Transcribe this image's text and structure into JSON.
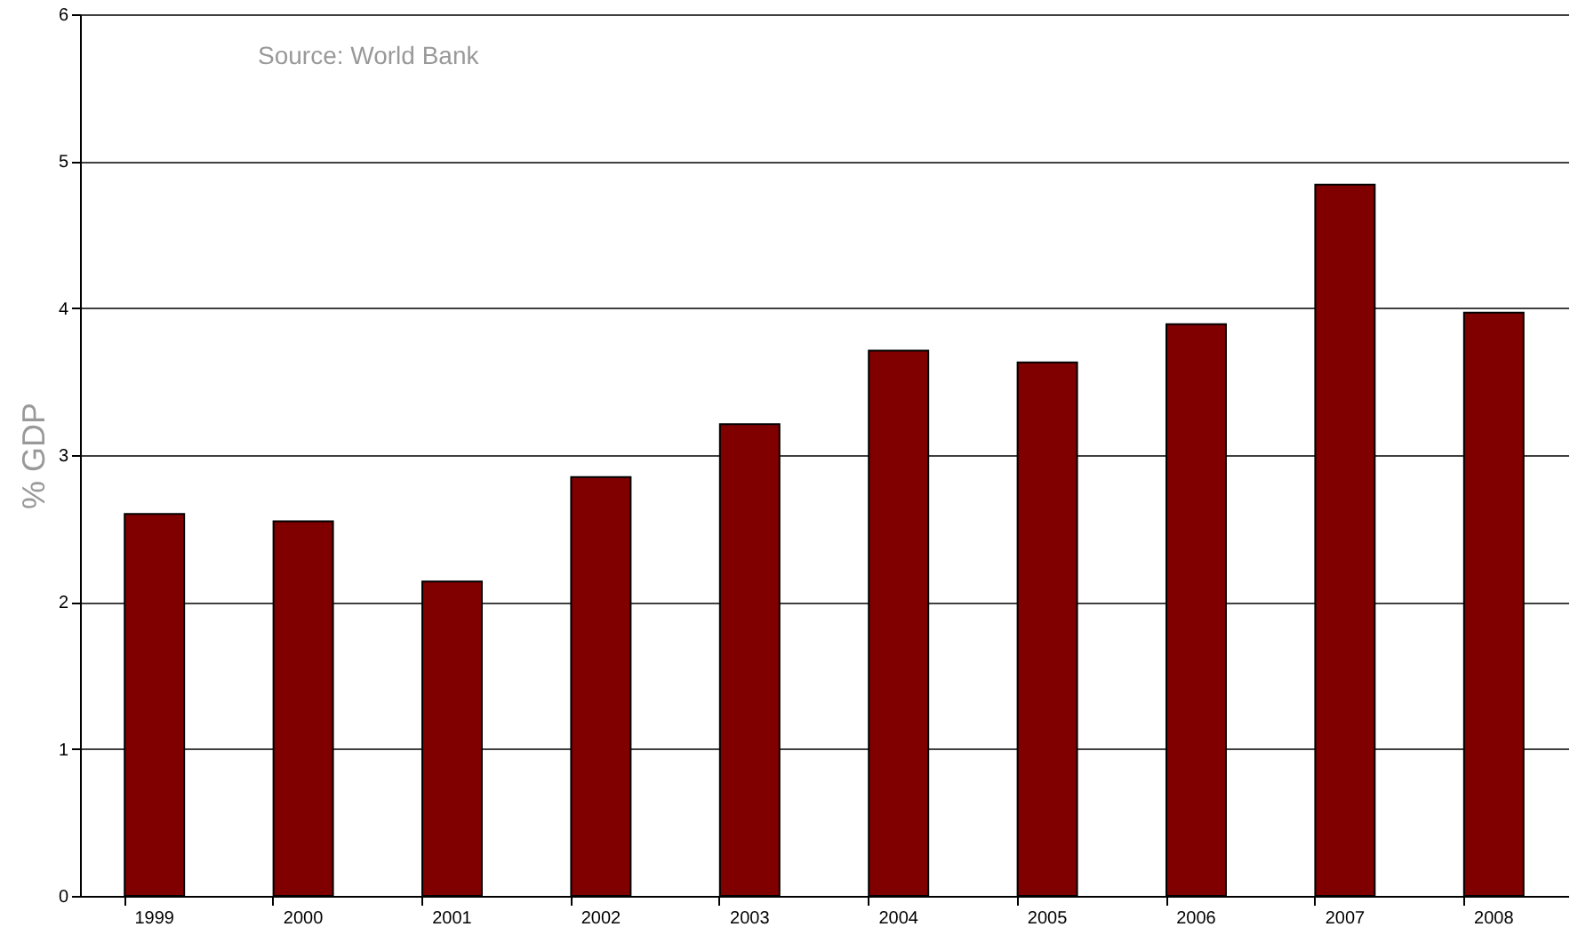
{
  "chart_data": {
    "type": "bar",
    "ylabel": "% GDP",
    "annotations": [
      "Source: World Bank"
    ],
    "categories": [
      "1999",
      "2000",
      "2001",
      "2002",
      "2003",
      "2004",
      "2005",
      "2006",
      "2007",
      "2008"
    ],
    "values": [
      2.6,
      2.55,
      2.14,
      2.85,
      3.21,
      3.71,
      3.63,
      3.89,
      4.84,
      3.97
    ],
    "color": "#800000",
    "ylim": [
      0,
      6
    ],
    "yticks": [
      0,
      1,
      2,
      3,
      4,
      5,
      6
    ],
    "grid": "y"
  }
}
